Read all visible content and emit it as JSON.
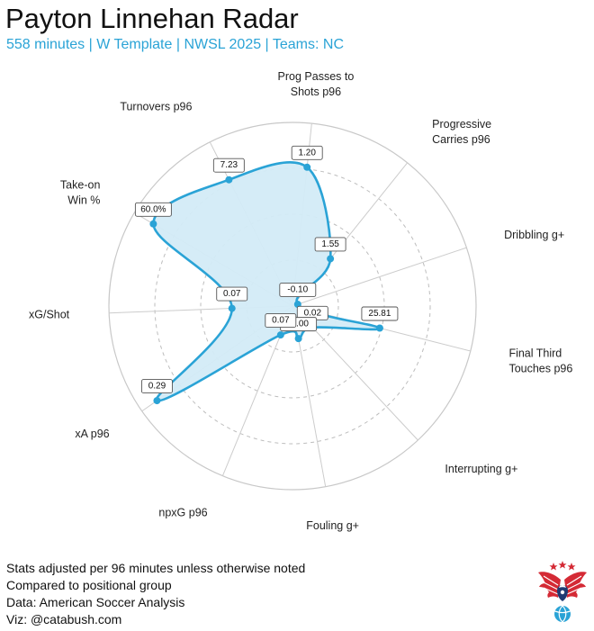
{
  "header": {
    "title": "Payton Linnehan Radar",
    "subtitle": "558 minutes | W Template | NWSL 2025 | Teams: NC"
  },
  "footer": {
    "lines": [
      "Stats adjusted per 96 minutes unless otherwise noted",
      "Compared to positional group",
      "Data: American Soccer Analysis",
      "Viz: @catabush.com"
    ]
  },
  "colors": {
    "accent": "#2aa3d6",
    "fill": "#d3ebf7",
    "ring": "#c8c8c8",
    "ring_dashed": "#bdbdbd",
    "spoke": "#cccccc"
  },
  "chart_data": {
    "type": "radar",
    "title": "Payton Linnehan Radar",
    "max_percentile": 100,
    "rings": [
      25,
      50,
      75,
      100
    ],
    "dashed_rings": [
      25,
      50,
      75
    ],
    "grid": true,
    "axes": [
      {
        "label": "Prog Passes to\nShots p96",
        "value_label": "1.20",
        "percentile": 76
      },
      {
        "label": "Progressive\nCarries p96",
        "value_label": "1.55",
        "percentile": 33
      },
      {
        "label": "Dribbling g+",
        "value_label": "-0.10",
        "percentile": 3
      },
      {
        "label": "Final Third\nTouches p96",
        "value_label": "25.81",
        "percentile": 49
      },
      {
        "label": "Interrupting g+",
        "value_label": "0.02",
        "percentile": 16
      },
      {
        "label": "Fouling g+",
        "value_label": "-0.00",
        "percentile": 18
      },
      {
        "label": "npxG p96",
        "value_label": "0.07",
        "percentile": 17
      },
      {
        "label": "xA p96",
        "value_label": "0.29",
        "percentile": 90
      },
      {
        "label": "xG/Shot",
        "value_label": "0.07",
        "percentile": 33
      },
      {
        "label": "Take-on\nWin %",
        "value_label": "60.0%",
        "percentile": 88
      },
      {
        "label": "Turnovers p96",
        "value_label": "7.23",
        "percentile": 77
      }
    ]
  }
}
